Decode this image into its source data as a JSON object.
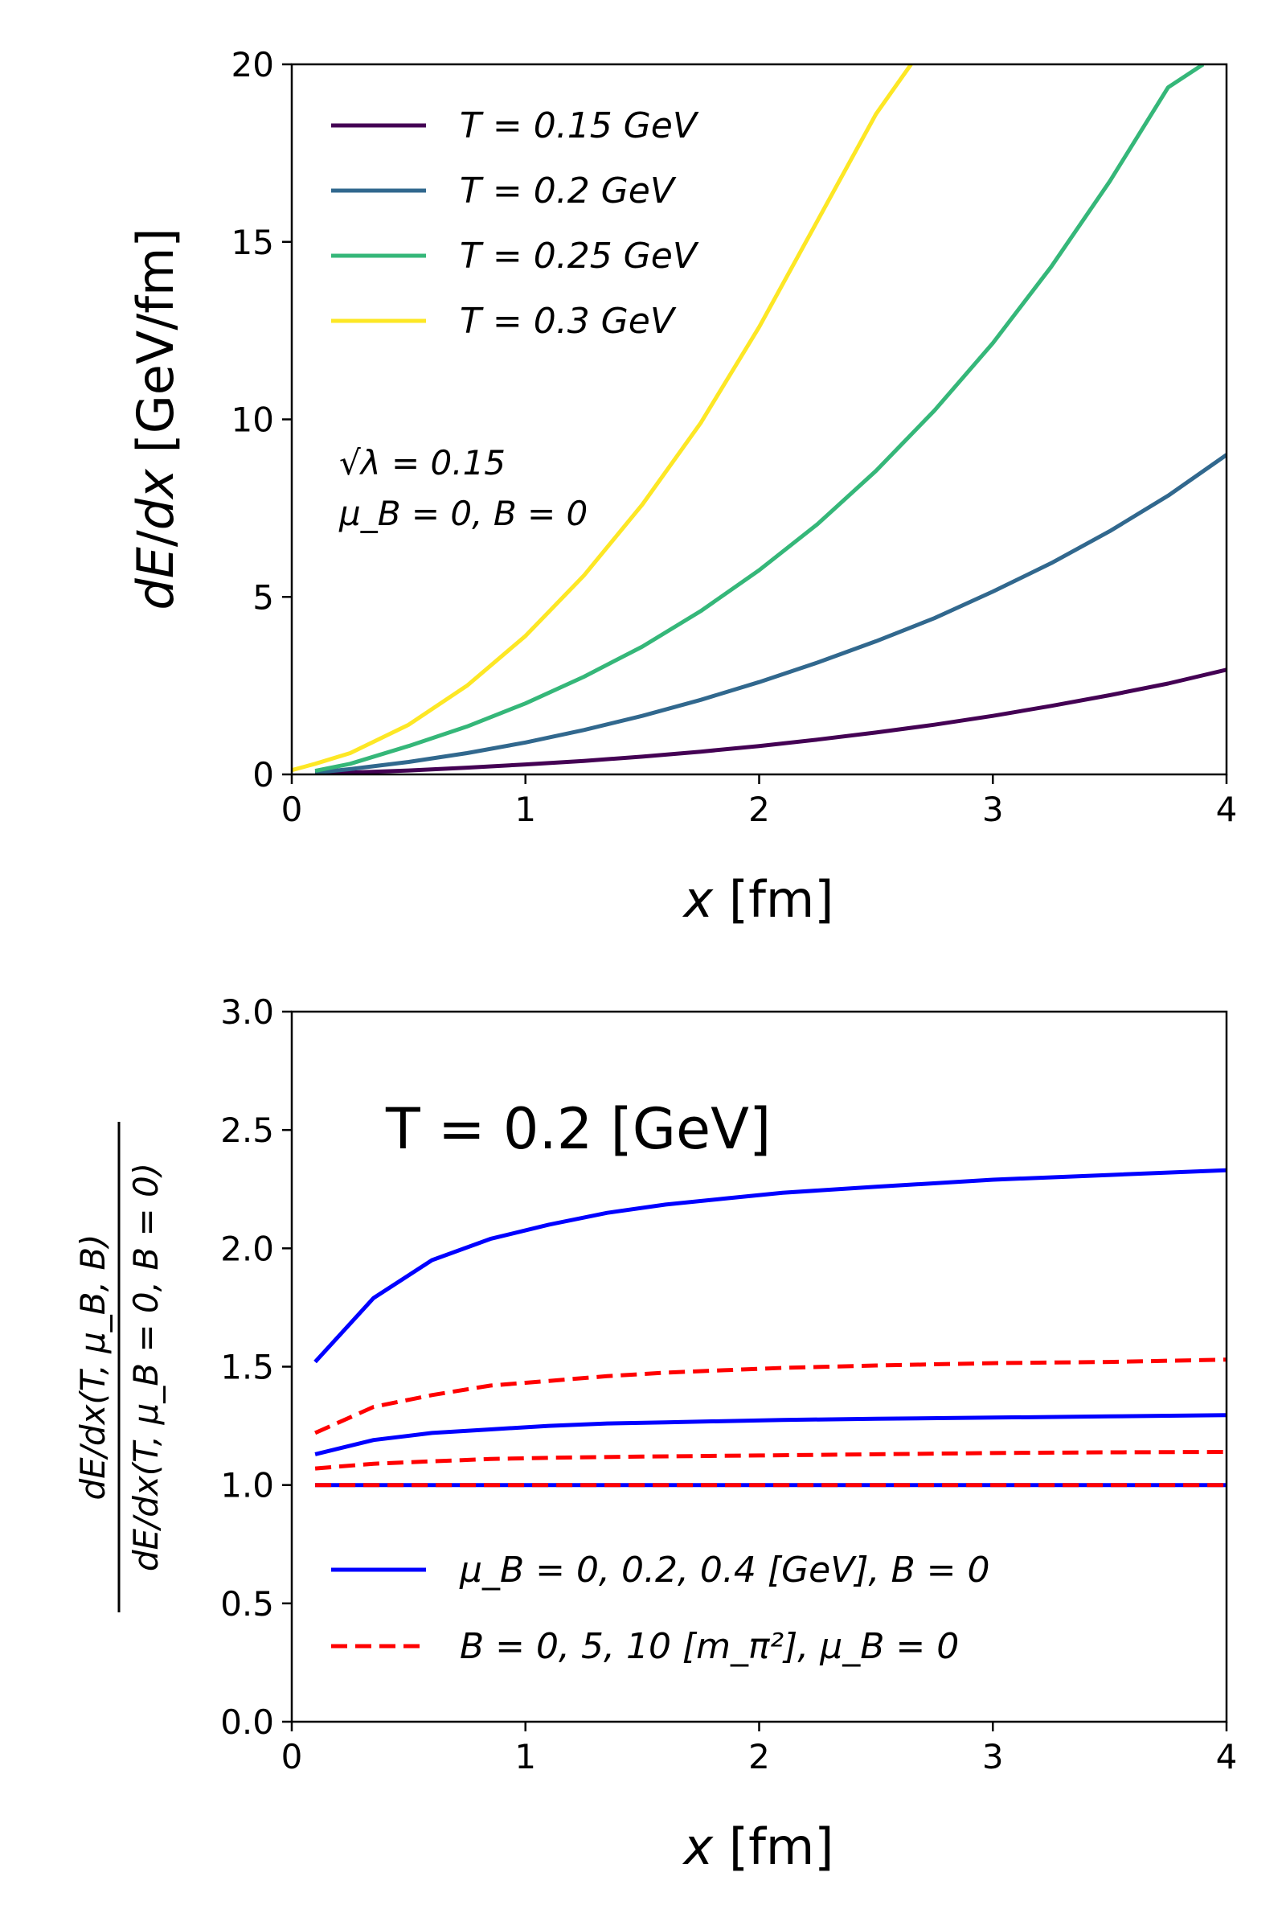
{
  "chart_data": [
    {
      "type": "line",
      "title": "",
      "xlabel": "x [fm]",
      "ylabel": "dE/dx [GeV/fm]",
      "xlim": [
        0,
        4
      ],
      "ylim": [
        0,
        20
      ],
      "xticks": [
        0,
        1,
        2,
        3,
        4
      ],
      "yticks": [
        0,
        5,
        10,
        15,
        20
      ],
      "grid": false,
      "legend_position": "top-left",
      "annotations": [
        "√λ = 0.15",
        "μ_B = 0, B = 0"
      ],
      "series": [
        {
          "name": "T = 0.15 GeV",
          "color": "#440154",
          "dash": "solid",
          "x": [
            0.1,
            0.25,
            0.5,
            0.75,
            1.0,
            1.25,
            1.5,
            1.75,
            2.0,
            2.25,
            2.5,
            2.75,
            3.0,
            3.25,
            3.5,
            3.75,
            4.0
          ],
          "y": [
            0.02,
            0.05,
            0.11,
            0.19,
            0.28,
            0.38,
            0.5,
            0.64,
            0.8,
            0.98,
            1.18,
            1.4,
            1.65,
            1.93,
            2.23,
            2.56,
            2.95
          ]
        },
        {
          "name": "T = 0.2 GeV",
          "color": "#31688e",
          "dash": "solid",
          "x": [
            0.1,
            0.25,
            0.5,
            0.75,
            1.0,
            1.25,
            1.5,
            1.75,
            2.0,
            2.25,
            2.5,
            2.75,
            3.0,
            3.25,
            3.5,
            3.75,
            4.0
          ],
          "y": [
            0.05,
            0.15,
            0.35,
            0.6,
            0.9,
            1.25,
            1.65,
            2.1,
            2.6,
            3.15,
            3.75,
            4.4,
            5.15,
            5.95,
            6.85,
            7.85,
            9.0
          ]
        },
        {
          "name": "T = 0.25 GeV",
          "color": "#35b779",
          "dash": "solid",
          "x": [
            0.1,
            0.25,
            0.5,
            0.75,
            1.0,
            1.25,
            1.5,
            1.75,
            2.0,
            2.25,
            2.5,
            2.75,
            3.0,
            3.25,
            3.5,
            3.75,
            3.9
          ],
          "y": [
            0.1,
            0.3,
            0.8,
            1.35,
            2.0,
            2.75,
            3.6,
            4.6,
            5.75,
            7.05,
            8.55,
            10.25,
            12.15,
            14.3,
            16.7,
            19.35,
            20.0
          ]
        },
        {
          "name": "T = 0.3 GeV",
          "color": "#fde725",
          "dash": "solid",
          "x": [
            0.0,
            0.1,
            0.25,
            0.5,
            0.75,
            1.0,
            1.25,
            1.5,
            1.75,
            2.0,
            2.25,
            2.5,
            2.65
          ],
          "y": [
            0.12,
            0.3,
            0.6,
            1.4,
            2.5,
            3.9,
            5.6,
            7.6,
            9.9,
            12.6,
            15.6,
            18.6,
            20.0
          ]
        }
      ]
    },
    {
      "type": "line",
      "title": "",
      "xlabel": "x [fm]",
      "ylabel": "dE/dx(T, μ_B, B) / dE/dx(T, μ_B = 0, B = 0)",
      "xlim": [
        0,
        4
      ],
      "ylim": [
        0,
        3
      ],
      "xticks": [
        0,
        1,
        2,
        3,
        4
      ],
      "yticks": [
        "0.0",
        "0.5",
        "1.0",
        "1.5",
        "2.0",
        "2.5",
        "3.0"
      ],
      "grid": false,
      "legend_position": "bottom-left",
      "annotation": "T = 0.2 [GeV]",
      "legend": [
        {
          "label": "μ_B = 0, 0.2, 0.4 [GeV], B = 0",
          "color": "#0000ff",
          "dash": "solid"
        },
        {
          "label": "B = 0, 5, 10 [m_π²], μ_B = 0",
          "color": "#ff0000",
          "dash": "dashed"
        }
      ],
      "series": [
        {
          "name": "μ_B = 0",
          "color": "#0000ff",
          "dash": "solid",
          "x": [
            0.1,
            4.0
          ],
          "y": [
            1.0,
            1.0
          ]
        },
        {
          "name": "μ_B = 0.2",
          "color": "#0000ff",
          "dash": "solid",
          "x": [
            0.1,
            0.35,
            0.6,
            0.85,
            1.1,
            1.35,
            1.6,
            1.85,
            2.1,
            2.5,
            3.0,
            3.5,
            4.0
          ],
          "y": [
            1.13,
            1.19,
            1.22,
            1.235,
            1.25,
            1.26,
            1.265,
            1.27,
            1.275,
            1.28,
            1.285,
            1.29,
            1.295
          ]
        },
        {
          "name": "μ_B = 0.4",
          "color": "#0000ff",
          "dash": "solid",
          "x": [
            0.1,
            0.35,
            0.6,
            0.85,
            1.1,
            1.35,
            1.6,
            1.85,
            2.1,
            2.5,
            3.0,
            3.5,
            4.0
          ],
          "y": [
            1.52,
            1.79,
            1.95,
            2.04,
            2.1,
            2.15,
            2.185,
            2.21,
            2.235,
            2.26,
            2.29,
            2.31,
            2.33
          ]
        },
        {
          "name": "B = 0",
          "color": "#ff0000",
          "dash": "dashed",
          "x": [
            0.1,
            4.0
          ],
          "y": [
            1.0,
            1.0
          ]
        },
        {
          "name": "B = 5",
          "color": "#ff0000",
          "dash": "dashed",
          "x": [
            0.1,
            0.35,
            0.6,
            0.85,
            1.1,
            1.5,
            2.0,
            2.5,
            3.0,
            3.5,
            4.0
          ],
          "y": [
            1.07,
            1.09,
            1.1,
            1.11,
            1.115,
            1.12,
            1.125,
            1.13,
            1.135,
            1.138,
            1.14
          ]
        },
        {
          "name": "B = 10",
          "color": "#ff0000",
          "dash": "dashed",
          "x": [
            0.1,
            0.35,
            0.6,
            0.85,
            1.1,
            1.35,
            1.6,
            1.85,
            2.1,
            2.5,
            3.0,
            3.5,
            4.0
          ],
          "y": [
            1.22,
            1.33,
            1.38,
            1.42,
            1.44,
            1.46,
            1.475,
            1.485,
            1.495,
            1.505,
            1.515,
            1.52,
            1.53
          ]
        }
      ]
    }
  ]
}
